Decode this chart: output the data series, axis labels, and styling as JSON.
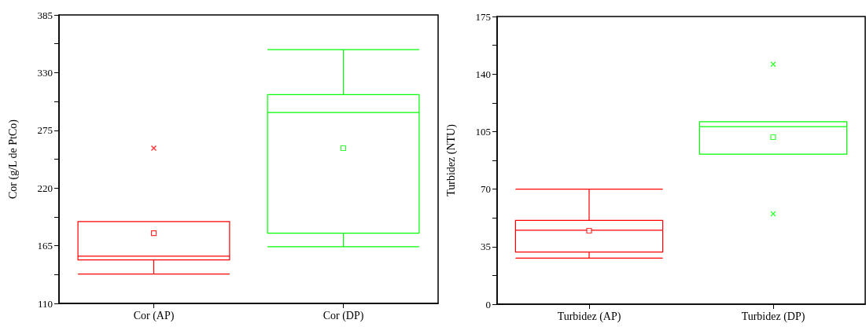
{
  "chart_data": [
    {
      "type": "box",
      "categories": [
        "Cor (AP)",
        "Cor (DP)"
      ],
      "ylabel": "Cor (g/L de PtCo)",
      "colors": [
        "#ff0000",
        "#00ff00"
      ],
      "ylim": [
        110,
        385
      ],
      "yticks": [
        110,
        {
          "value": 137.5,
          "label": null
        },
        165,
        {
          "value": 192.5,
          "label": null
        },
        220,
        {
          "value": 247.5,
          "label": null
        },
        275,
        {
          "value": 302.5,
          "label": null
        },
        330,
        {
          "value": 357.5,
          "label": null
        },
        385
      ],
      "grid": false,
      "boxes": [
        {
          "low": 138,
          "q1": 151.5,
          "median": 155,
          "q3": 188,
          "high": 188,
          "mean": 177,
          "outliers": [
            258
          ]
        },
        {
          "low": 164,
          "q1": 177,
          "median": 292,
          "q3": 309,
          "high": 352,
          "mean": 258
        }
      ]
    },
    {
      "type": "box",
      "categories": [
        "Turbidez (AP)",
        "Turbidez (DP)"
      ],
      "ylabel": "Turbidez (NTU)",
      "colors": [
        "#ff0000",
        "#00ff00"
      ],
      "ylim": [
        0,
        175
      ],
      "yticks": [
        0,
        {
          "value": 17.5,
          "label": null
        },
        35,
        {
          "value": 52.5,
          "label": null
        },
        70,
        {
          "value": 87.5,
          "label": null
        },
        105,
        {
          "value": 122.5,
          "label": null
        },
        140,
        {
          "value": 157.5,
          "label": null
        },
        175
      ],
      "grid": false,
      "boxes": [
        {
          "low": 28,
          "q1": 31.7,
          "median": 45,
          "q3": 51,
          "high": 70,
          "mean": 44.7
        },
        {
          "low": 91.3,
          "q1": 91.3,
          "median": 108,
          "q3": 111,
          "high": 111,
          "mean": 101.6,
          "outliers": [
            146,
            55
          ]
        }
      ]
    }
  ]
}
